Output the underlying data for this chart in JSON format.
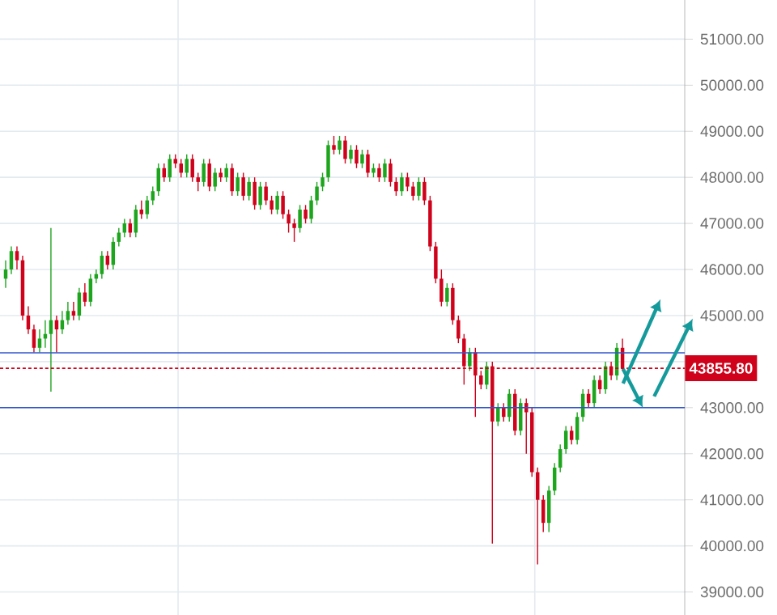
{
  "chart_data": {
    "type": "candlestick",
    "categories": [
      null,
      null,
      null,
      null,
      null,
      null,
      null,
      null,
      null,
      null,
      null,
      null,
      null,
      null,
      null,
      null,
      null,
      null,
      null,
      null,
      null,
      null,
      null,
      null,
      null,
      null,
      null,
      null,
      null,
      null,
      null,
      null,
      null,
      null,
      null,
      null,
      null,
      null,
      null,
      null,
      null,
      null,
      null,
      null,
      null,
      null,
      null,
      null,
      null,
      null,
      null,
      null,
      null,
      null,
      null,
      null,
      null,
      null,
      null,
      null,
      null,
      null,
      null,
      null,
      null,
      null,
      null,
      null,
      null,
      null,
      null,
      null,
      null,
      null,
      null,
      null,
      null,
      null,
      null,
      null,
      null,
      null,
      null,
      null,
      null,
      null,
      null,
      null,
      null,
      null,
      null,
      null,
      null,
      null,
      null,
      null,
      null,
      null,
      null,
      null,
      null,
      null,
      null,
      null,
      null,
      null,
      null,
      null,
      null,
      null
    ],
    "ohlc": [
      [
        45800,
        46200,
        45600,
        46000
      ],
      [
        46000,
        46500,
        45900,
        46400
      ],
      [
        46400,
        46500,
        46000,
        46200
      ],
      [
        46200,
        46300,
        44900,
        45000
      ],
      [
        45000,
        45200,
        44600,
        44700
      ],
      [
        44700,
        44800,
        44200,
        44300
      ],
      [
        44300,
        44700,
        44200,
        44500
      ],
      [
        44500,
        44900,
        44300,
        44600
      ],
      [
        44600,
        46900,
        43350,
        44900
      ],
      [
        44900,
        45000,
        44200,
        44700
      ],
      [
        44700,
        45100,
        44600,
        44900
      ],
      [
        44900,
        45300,
        44800,
        45100
      ],
      [
        45100,
        45300,
        44900,
        45000
      ],
      [
        45000,
        45600,
        44900,
        45500
      ],
      [
        45500,
        45700,
        45200,
        45300
      ],
      [
        45300,
        45900,
        45200,
        45800
      ],
      [
        45800,
        46000,
        45700,
        45900
      ],
      [
        45900,
        46400,
        45800,
        46300
      ],
      [
        46300,
        46400,
        46000,
        46100
      ],
      [
        46100,
        46700,
        46000,
        46600
      ],
      [
        46600,
        46900,
        46500,
        46800
      ],
      [
        46800,
        47100,
        46700,
        47000
      ],
      [
        47000,
        47100,
        46700,
        46800
      ],
      [
        46800,
        47400,
        46700,
        47300
      ],
      [
        47300,
        47500,
        47100,
        47200
      ],
      [
        47200,
        47600,
        47100,
        47500
      ],
      [
        47500,
        47800,
        47400,
        47700
      ],
      [
        47700,
        48300,
        47600,
        48200
      ],
      [
        48200,
        48300,
        47900,
        48000
      ],
      [
        48000,
        48500,
        47900,
        48400
      ],
      [
        48400,
        48500,
        48200,
        48300
      ],
      [
        48300,
        48400,
        48000,
        48100
      ],
      [
        48100,
        48500,
        48000,
        48400
      ],
      [
        48400,
        48500,
        47900,
        48000
      ],
      [
        48000,
        48100,
        47700,
        47900
      ],
      [
        47900,
        48400,
        47800,
        48300
      ],
      [
        48300,
        48400,
        47700,
        47800
      ],
      [
        47800,
        48200,
        47700,
        48100
      ],
      [
        48100,
        48200,
        47900,
        48000
      ],
      [
        48000,
        48300,
        47900,
        48200
      ],
      [
        48200,
        48300,
        47600,
        47700
      ],
      [
        47700,
        48100,
        47600,
        48000
      ],
      [
        48000,
        48100,
        47500,
        47600
      ],
      [
        47600,
        48000,
        47500,
        47900
      ],
      [
        47900,
        48000,
        47300,
        47400
      ],
      [
        47400,
        47900,
        47300,
        47800
      ],
      [
        47800,
        47900,
        47400,
        47500
      ],
      [
        47500,
        47600,
        47200,
        47300
      ],
      [
        47300,
        47700,
        47200,
        47600
      ],
      [
        47600,
        47700,
        47100,
        47200
      ],
      [
        47200,
        47300,
        46800,
        47000
      ],
      [
        47000,
        47100,
        46600,
        46900
      ],
      [
        46900,
        47400,
        46800,
        47300
      ],
      [
        47300,
        47400,
        47000,
        47100
      ],
      [
        47100,
        47600,
        47000,
        47500
      ],
      [
        47500,
        47900,
        47400,
        47800
      ],
      [
        47800,
        48100,
        47700,
        48000
      ],
      [
        48000,
        48800,
        47900,
        48700
      ],
      [
        48700,
        48900,
        48500,
        48600
      ],
      [
        48600,
        48900,
        48500,
        48800
      ],
      [
        48800,
        48900,
        48300,
        48400
      ],
      [
        48400,
        48700,
        48300,
        48600
      ],
      [
        48600,
        48700,
        48200,
        48300
      ],
      [
        48300,
        48600,
        48200,
        48500
      ],
      [
        48500,
        48600,
        48000,
        48100
      ],
      [
        48100,
        48300,
        48000,
        48200
      ],
      [
        48200,
        48300,
        47900,
        48000
      ],
      [
        48000,
        48400,
        47900,
        48300
      ],
      [
        48300,
        48400,
        47800,
        47900
      ],
      [
        47900,
        48000,
        47600,
        47700
      ],
      [
        47700,
        48100,
        47600,
        48000
      ],
      [
        48000,
        48100,
        47700,
        47800
      ],
      [
        47800,
        47900,
        47500,
        47600
      ],
      [
        47600,
        48000,
        47500,
        47900
      ],
      [
        47900,
        48000,
        47400,
        47500
      ],
      [
        47500,
        47600,
        46400,
        46500
      ],
      [
        46500,
        46600,
        45700,
        45800
      ],
      [
        45800,
        46000,
        45200,
        45300
      ],
      [
        45300,
        45700,
        45200,
        45600
      ],
      [
        45600,
        45700,
        44800,
        44900
      ],
      [
        44900,
        45000,
        44400,
        44500
      ],
      [
        44500,
        44600,
        43500,
        43900
      ],
      [
        43900,
        44300,
        43800,
        44200
      ],
      [
        44200,
        44300,
        42800,
        43700
      ],
      [
        43700,
        43800,
        43400,
        43500
      ],
      [
        43500,
        44000,
        43400,
        43900
      ],
      [
        43900,
        44000,
        40050,
        42700
      ],
      [
        42700,
        43100,
        42600,
        43000
      ],
      [
        43000,
        43100,
        42700,
        42800
      ],
      [
        42800,
        43400,
        42700,
        43300
      ],
      [
        43300,
        43400,
        42400,
        42500
      ],
      [
        42500,
        43200,
        42400,
        43100
      ],
      [
        43100,
        43200,
        42000,
        42900
      ],
      [
        42900,
        43000,
        41500,
        41600
      ],
      [
        41600,
        41700,
        39600,
        41000
      ],
      [
        41000,
        41100,
        40300,
        40500
      ],
      [
        40500,
        41300,
        40300,
        41200
      ],
      [
        41200,
        41800,
        41100,
        41700
      ],
      [
        41700,
        42200,
        41600,
        42100
      ],
      [
        42100,
        42600,
        42000,
        42500
      ],
      [
        42500,
        42600,
        42200,
        42300
      ],
      [
        42300,
        42900,
        42200,
        42800
      ],
      [
        42800,
        43400,
        42700,
        43300
      ],
      [
        43300,
        43400,
        43000,
        43100
      ],
      [
        43100,
        43700,
        43000,
        43600
      ],
      [
        43600,
        43700,
        43300,
        43400
      ],
      [
        43400,
        44000,
        43300,
        43900
      ],
      [
        43900,
        44000,
        43600,
        43700
      ],
      [
        43700,
        44400,
        43600,
        44300
      ],
      [
        44300,
        44500,
        43800,
        43855.8
      ]
    ],
    "ylim": [
      38500,
      51850
    ],
    "yticks": [
      {
        "value": 39000,
        "label": "39000.00"
      },
      {
        "value": 40000,
        "label": "40000.00"
      },
      {
        "value": 41000,
        "label": "41000.00"
      },
      {
        "value": 42000,
        "label": "42000.00"
      },
      {
        "value": 43000,
        "label": "43000.00"
      },
      {
        "value": 44000,
        "label": null
      },
      {
        "value": 45000,
        "label": "45000.00"
      },
      {
        "value": 46000,
        "label": "46000.00"
      },
      {
        "value": 47000,
        "label": "47000.00"
      },
      {
        "value": 48000,
        "label": "48000.00"
      },
      {
        "value": 49000,
        "label": "49000.00"
      },
      {
        "value": 50000,
        "label": "50000.00"
      },
      {
        "value": 51000,
        "label": "51000.00"
      }
    ],
    "ref_lines": [
      {
        "axis": "y",
        "value": 44190,
        "color": "#3355cc"
      },
      {
        "axis": "y",
        "value": 43855.8,
        "label": "43855.80",
        "color": "#d0021b",
        "line_style": "dashed"
      },
      {
        "axis": "y",
        "value": 43000,
        "color": "#3355cc"
      }
    ],
    "grid": "y",
    "tick_labels": "y"
  }
}
